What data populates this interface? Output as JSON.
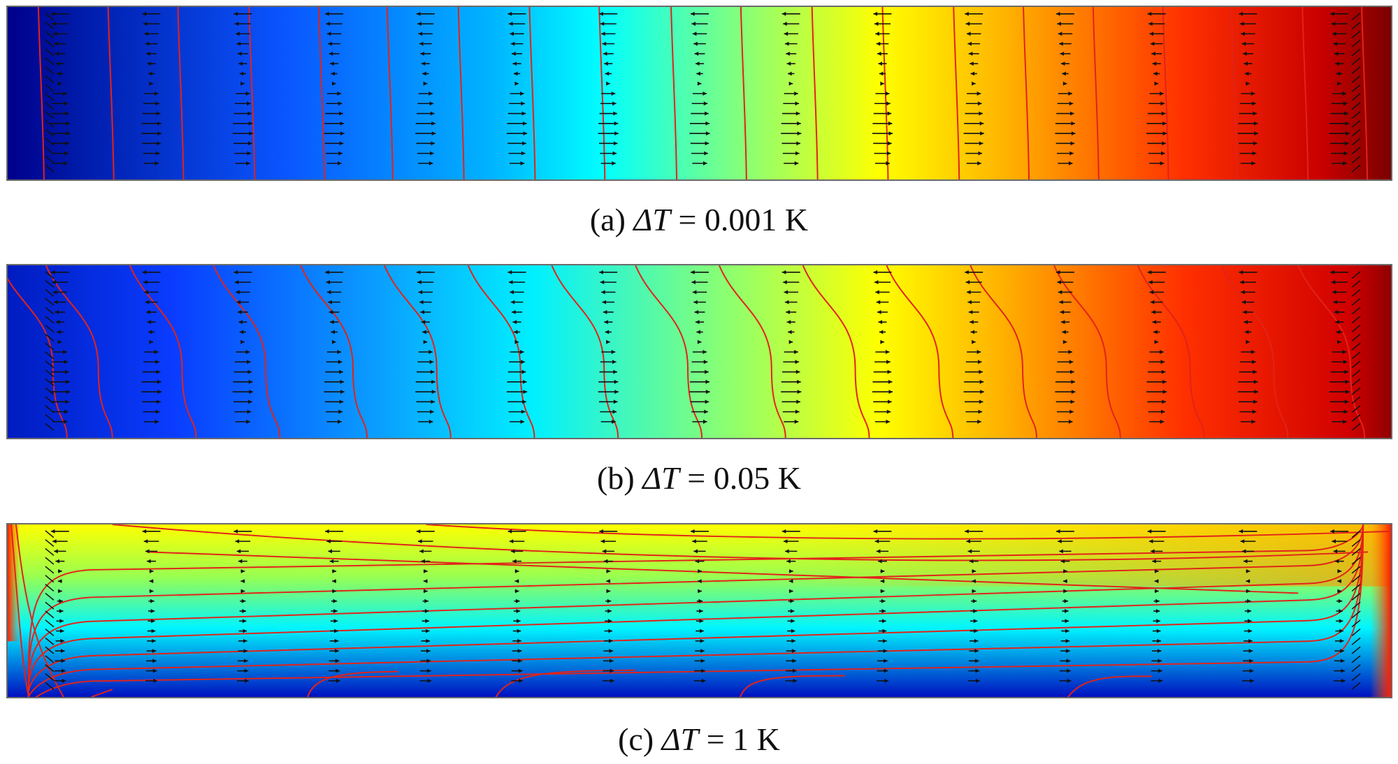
{
  "panels": [
    {
      "id": "a",
      "label": "(a)",
      "symbol": "ΔT",
      "value_text": "= 0.001 K",
      "delta_T_K": 0.001,
      "color_stops": [
        [
          0.0,
          "#00008b"
        ],
        [
          0.05,
          "#001aa8"
        ],
        [
          0.2,
          "#0a55ff"
        ],
        [
          0.35,
          "#00b4ff"
        ],
        [
          0.43,
          "#00ffff"
        ],
        [
          0.55,
          "#9fff5f"
        ],
        [
          0.63,
          "#ffff00"
        ],
        [
          0.72,
          "#ffb400"
        ],
        [
          0.85,
          "#ff3000"
        ],
        [
          0.95,
          "#c80000"
        ],
        [
          1.0,
          "#7a0000"
        ]
      ]
    },
    {
      "id": "b",
      "label": "(b)",
      "symbol": "ΔT",
      "value_text": "= 0.05 K",
      "delta_T_K": 0.05,
      "color_stops": [
        [
          0.0,
          "#001cc0"
        ],
        [
          0.12,
          "#0a3cff"
        ],
        [
          0.27,
          "#0aa0ff"
        ],
        [
          0.38,
          "#00f0ff"
        ],
        [
          0.52,
          "#8cff70"
        ],
        [
          0.63,
          "#ffff00"
        ],
        [
          0.72,
          "#ffb000"
        ],
        [
          0.85,
          "#ff3000"
        ],
        [
          0.97,
          "#d00000"
        ],
        [
          1.0,
          "#900000"
        ]
      ]
    },
    {
      "id": "c",
      "label": "(c)",
      "symbol": "ΔT",
      "value_text": "= 1 K",
      "delta_T_K": 1,
      "color_stops": [
        [
          0.0,
          "#ffff00"
        ],
        [
          0.3,
          "#9aff50"
        ],
        [
          0.6,
          "#00f5ff"
        ],
        [
          1.0,
          "#0010c0"
        ]
      ]
    }
  ],
  "colors": {
    "isotherm": "#e2231a",
    "arrow": "#111111",
    "border": "#6b6b6b"
  }
}
